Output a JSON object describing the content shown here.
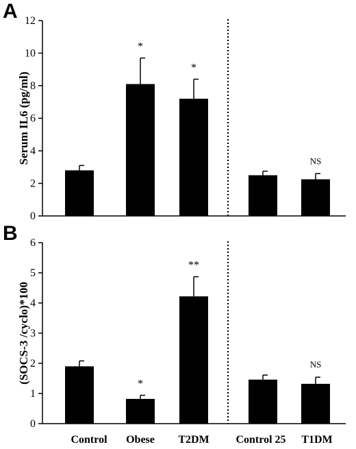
{
  "categories": [
    "Control",
    "Obese",
    "T2DM",
    "Control 25",
    "T1DM"
  ],
  "chart_data": [
    {
      "type": "bar",
      "panel": "A",
      "categories": [
        "Control",
        "Obese",
        "T2DM",
        "Control 25",
        "T1DM"
      ],
      "values": [
        2.8,
        8.1,
        7.2,
        2.5,
        2.25
      ],
      "errors": [
        0.3,
        1.6,
        1.2,
        0.25,
        0.35
      ],
      "significance": [
        "",
        "*",
        "*",
        "",
        "NS"
      ],
      "ylabel": "Serum IL6 (pg/ml)",
      "ylim": [
        0,
        12
      ],
      "yticks": [
        0,
        2,
        4,
        6,
        8,
        10,
        12
      ],
      "separator_between": [
        "T2DM",
        "Control 25"
      ],
      "bar_color": "#000000"
    },
    {
      "type": "bar",
      "panel": "B",
      "categories": [
        "Control",
        "Obese",
        "T2DM",
        "Control 25",
        "T1DM"
      ],
      "values": [
        1.9,
        0.82,
        4.22,
        1.46,
        1.32
      ],
      "errors": [
        0.18,
        0.12,
        0.65,
        0.15,
        0.22
      ],
      "significance": [
        "",
        "*",
        "**",
        "",
        "NS"
      ],
      "ylabel": "(SOCS-3 /cyclo)*100",
      "ylim": [
        0,
        6
      ],
      "yticks": [
        0,
        1,
        2,
        3,
        4,
        5,
        6
      ],
      "separator_between": [
        "T2DM",
        "Control 25"
      ],
      "bar_color": "#000000"
    }
  ]
}
